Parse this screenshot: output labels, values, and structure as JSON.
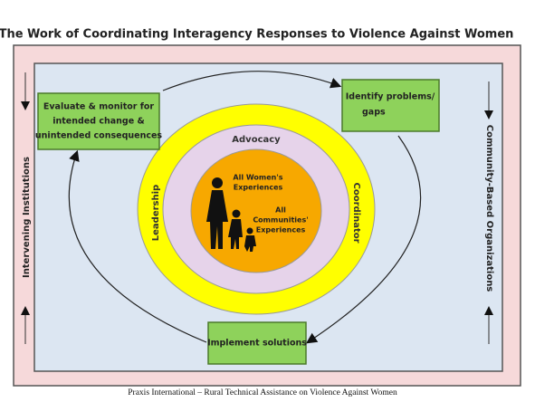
{
  "title": "The Work of Coordinating Interagency Responses to Violence Against Women",
  "boxes": [
    {
      "lines": [
        "Evaluate & monitor for",
        "intended change &",
        "unintended consequences"
      ]
    },
    {
      "lines": [
        "Identify problems/",
        "gaps"
      ]
    },
    {
      "lines": [
        "Implement solutions"
      ]
    }
  ],
  "rings": {
    "outer": "Coordinator",
    "outer_left": "Leadership",
    "middle": "Advocacy"
  },
  "center": {
    "women": [
      "All Women's",
      "Experiences"
    ],
    "communities": [
      "All",
      "Communities'",
      "Experiences"
    ]
  },
  "sides": {
    "left": "Intervening Institutions",
    "right": "Community-Based Organizations"
  },
  "footer": "Praxis International – Rural Technical Assistance on Violence Against Women"
}
